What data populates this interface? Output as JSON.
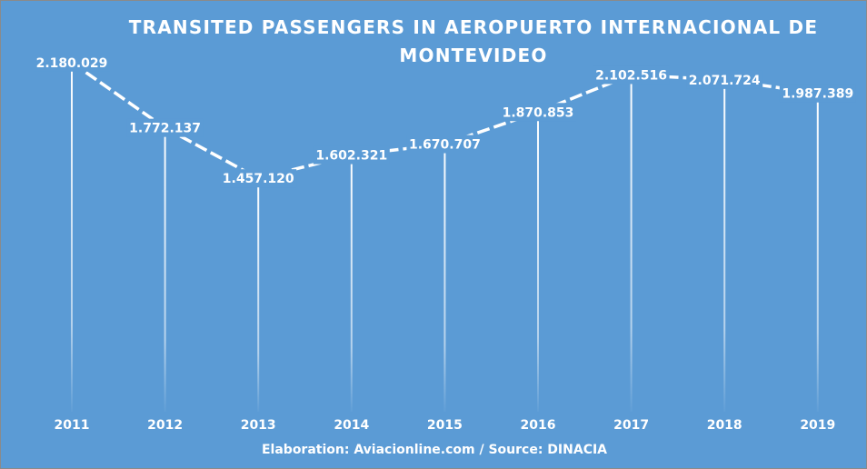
{
  "chart_data": {
    "type": "line",
    "title": "TRANSITED PASSENGERS IN  AEROPUERTO INTERNACIONAL DE MONTEVIDEO",
    "xlabel": "",
    "ylabel": "",
    "categories": [
      "2011",
      "2012",
      "2013",
      "2014",
      "2015",
      "2016",
      "2017",
      "2018",
      "2019"
    ],
    "values": [
      2180029,
      1772137,
      1457120,
      1602321,
      1670707,
      1870853,
      2102516,
      2071724,
      1987389
    ],
    "value_labels": [
      "2.180.029",
      "1.772.137",
      "1.457.120",
      "1.602.321",
      "1.670.707",
      "1.870.853",
      "2.102.516",
      "2.071.724",
      "1.987.389"
    ],
    "ylim": [
      0,
      2400000
    ],
    "grid": false,
    "legend": "none",
    "line_style": "dashed",
    "drop_lines": true
  },
  "footer": {
    "source": "Elaboration: Aviacionline.com / Source: DINACIA"
  },
  "colors": {
    "background": "#5b9bd5",
    "line": "#ffffff",
    "text": "#ffffff"
  }
}
